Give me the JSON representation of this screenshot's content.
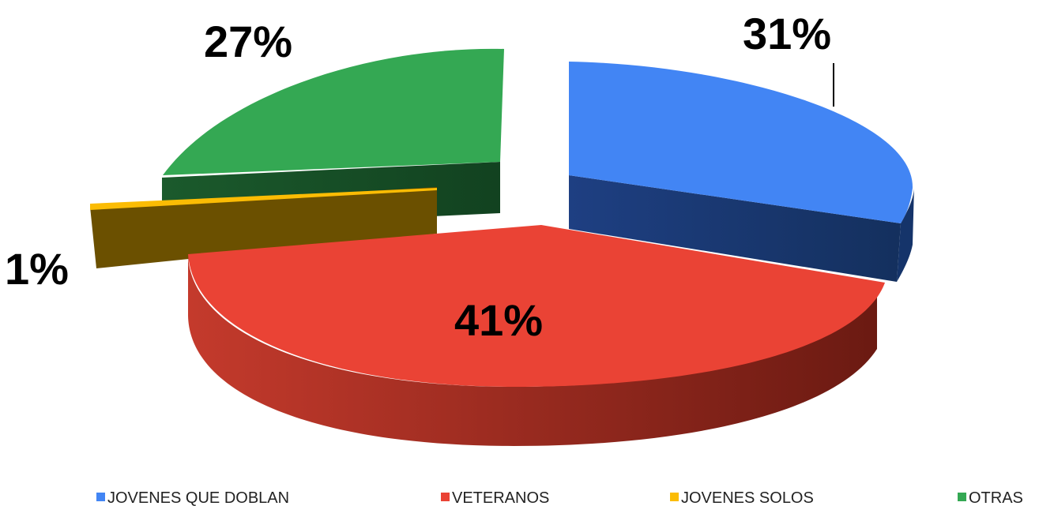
{
  "chart_data": {
    "type": "pie",
    "style": "3d-exploded",
    "categories": [
      "JOVENES QUE DOBLAN",
      "VETERANOS",
      "JOVENES SOLOS",
      "OTRAS"
    ],
    "values": [
      31,
      41,
      1,
      27
    ],
    "data_labels": [
      "31%",
      "41%",
      "1%",
      "27%"
    ],
    "colors": [
      "#4285f4",
      "#ea4335",
      "#fbbc04",
      "#34a853"
    ],
    "legend_position": "bottom"
  }
}
